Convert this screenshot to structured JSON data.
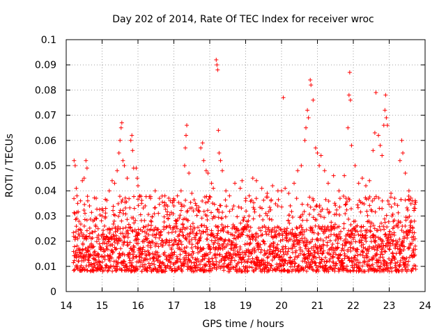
{
  "chart_data": {
    "type": "scatter",
    "title": "Day 202 of 2014, Rate Of TEC Index for receiver wroc",
    "xlabel": "GPS time / hours",
    "ylabel": "ROTI / TECUs",
    "xlim": [
      14,
      24
    ],
    "ylim": [
      0,
      0.1
    ],
    "x_ticks": [
      "14",
      "15",
      "16",
      "17",
      "18",
      "19",
      "20",
      "21",
      "22",
      "23",
      "24"
    ],
    "y_ticks": [
      "0",
      "0.01",
      "0.02",
      "0.03",
      "0.04",
      "0.05",
      "0.06",
      "0.07",
      "0.08",
      "0.09",
      "0.1"
    ],
    "grid": true,
    "marker": "+",
    "marker_color": "#ff0000",
    "baseline": {
      "x_start": 14.2,
      "x_end": 23.75,
      "typical_range": [
        0.008,
        0.026
      ]
    },
    "points": [
      [
        14.22,
        0.052
      ],
      [
        14.25,
        0.05
      ],
      [
        14.28,
        0.041
      ],
      [
        14.3,
        0.038
      ],
      [
        14.32,
        0.035
      ],
      [
        14.4,
        0.036
      ],
      [
        14.45,
        0.044
      ],
      [
        14.5,
        0.045
      ],
      [
        14.55,
        0.052
      ],
      [
        14.58,
        0.049
      ],
      [
        14.6,
        0.036
      ],
      [
        14.65,
        0.034
      ],
      [
        14.75,
        0.028
      ],
      [
        15.0,
        0.03
      ],
      [
        15.1,
        0.033
      ],
      [
        15.2,
        0.04
      ],
      [
        15.28,
        0.044
      ],
      [
        15.35,
        0.043
      ],
      [
        15.42,
        0.048
      ],
      [
        15.47,
        0.055
      ],
      [
        15.5,
        0.06
      ],
      [
        15.53,
        0.065
      ],
      [
        15.55,
        0.067
      ],
      [
        15.58,
        0.052
      ],
      [
        15.62,
        0.05
      ],
      [
        15.7,
        0.045
      ],
      [
        15.8,
        0.06
      ],
      [
        15.83,
        0.062
      ],
      [
        15.85,
        0.056
      ],
      [
        15.88,
        0.049
      ],
      [
        15.95,
        0.049
      ],
      [
        15.98,
        0.045
      ],
      [
        16.0,
        0.042
      ],
      [
        16.05,
        0.038
      ],
      [
        16.1,
        0.035
      ],
      [
        16.2,
        0.034
      ],
      [
        16.35,
        0.037
      ],
      [
        16.48,
        0.04
      ],
      [
        16.6,
        0.037
      ],
      [
        16.75,
        0.038
      ],
      [
        16.9,
        0.036
      ],
      [
        17.0,
        0.034
      ],
      [
        17.1,
        0.038
      ],
      [
        17.2,
        0.04
      ],
      [
        17.3,
        0.05
      ],
      [
        17.32,
        0.057
      ],
      [
        17.34,
        0.062
      ],
      [
        17.36,
        0.066
      ],
      [
        17.42,
        0.047
      ],
      [
        17.5,
        0.039
      ],
      [
        17.6,
        0.035
      ],
      [
        17.75,
        0.057
      ],
      [
        17.8,
        0.059
      ],
      [
        17.83,
        0.052
      ],
      [
        17.9,
        0.048
      ],
      [
        17.95,
        0.047
      ],
      [
        18.05,
        0.043
      ],
      [
        18.1,
        0.041
      ],
      [
        18.18,
        0.092
      ],
      [
        18.2,
        0.09
      ],
      [
        18.22,
        0.088
      ],
      [
        18.24,
        0.064
      ],
      [
        18.26,
        0.055
      ],
      [
        18.3,
        0.052
      ],
      [
        18.35,
        0.048
      ],
      [
        18.45,
        0.04
      ],
      [
        18.55,
        0.038
      ],
      [
        18.7,
        0.043
      ],
      [
        18.85,
        0.041
      ],
      [
        18.9,
        0.044
      ],
      [
        19.0,
        0.036
      ],
      [
        19.1,
        0.038
      ],
      [
        19.2,
        0.045
      ],
      [
        19.3,
        0.044
      ],
      [
        19.45,
        0.041
      ],
      [
        19.6,
        0.039
      ],
      [
        19.75,
        0.042
      ],
      [
        19.9,
        0.04
      ],
      [
        20.0,
        0.04
      ],
      [
        20.05,
        0.077
      ],
      [
        20.1,
        0.041
      ],
      [
        20.2,
        0.039
      ],
      [
        20.35,
        0.043
      ],
      [
        20.45,
        0.048
      ],
      [
        20.55,
        0.05
      ],
      [
        20.65,
        0.06
      ],
      [
        20.68,
        0.065
      ],
      [
        20.72,
        0.072
      ],
      [
        20.75,
        0.069
      ],
      [
        20.8,
        0.084
      ],
      [
        20.82,
        0.082
      ],
      [
        20.88,
        0.076
      ],
      [
        20.95,
        0.057
      ],
      [
        21.0,
        0.055
      ],
      [
        21.05,
        0.05
      ],
      [
        21.1,
        0.054
      ],
      [
        21.2,
        0.048
      ],
      [
        21.3,
        0.043
      ],
      [
        21.45,
        0.046
      ],
      [
        21.6,
        0.04
      ],
      [
        21.75,
        0.046
      ],
      [
        21.85,
        0.065
      ],
      [
        21.88,
        0.078
      ],
      [
        21.9,
        0.087
      ],
      [
        21.92,
        0.076
      ],
      [
        21.95,
        0.058
      ],
      [
        22.05,
        0.05
      ],
      [
        22.15,
        0.043
      ],
      [
        22.25,
        0.045
      ],
      [
        22.35,
        0.042
      ],
      [
        22.45,
        0.044
      ],
      [
        22.55,
        0.056
      ],
      [
        22.6,
        0.063
      ],
      [
        22.63,
        0.079
      ],
      [
        22.7,
        0.062
      ],
      [
        22.75,
        0.058
      ],
      [
        22.8,
        0.054
      ],
      [
        22.85,
        0.066
      ],
      [
        22.88,
        0.072
      ],
      [
        22.9,
        0.078
      ],
      [
        22.92,
        0.069
      ],
      [
        22.95,
        0.066
      ],
      [
        23.05,
        0.039
      ],
      [
        23.15,
        0.037
      ],
      [
        23.3,
        0.052
      ],
      [
        23.35,
        0.06
      ],
      [
        23.38,
        0.055
      ],
      [
        23.45,
        0.047
      ],
      [
        23.55,
        0.04
      ],
      [
        23.65,
        0.036
      ],
      [
        23.72,
        0.033
      ]
    ]
  }
}
